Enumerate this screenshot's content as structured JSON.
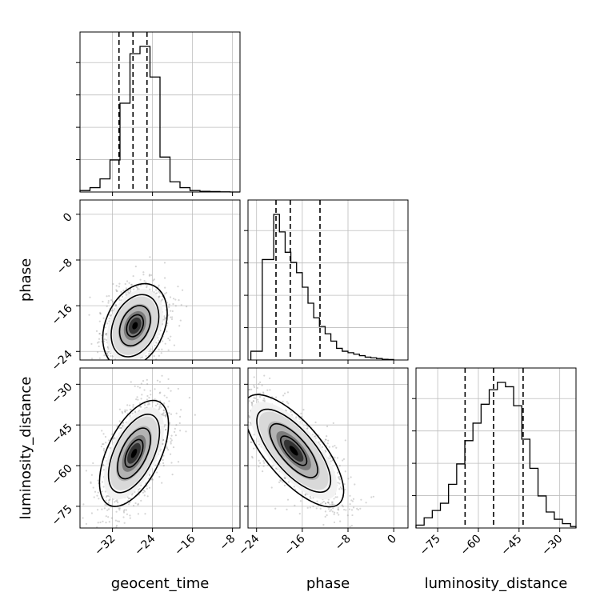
{
  "chart_data": {
    "type": "corner",
    "parameters": [
      "geocent_time",
      "phase",
      "luminosity_distance"
    ],
    "axis_labels": {
      "x": [
        "geocent_time",
        "phase",
        "luminosity_distance"
      ],
      "y": [
        "phase",
        "luminosity_distance"
      ]
    },
    "ranges": {
      "geocent_time": [
        -38.5,
        -6.5
      ],
      "phase": [
        -25.5,
        2.5
      ],
      "luminosity_distance": [
        -83,
        -24
      ]
    },
    "ticks": {
      "geocent_time": [
        -32,
        -24,
        -16,
        -8
      ],
      "phase": [
        -24,
        -16,
        -8,
        0
      ],
      "luminosity_distance": [
        -75,
        -60,
        -45,
        -30
      ]
    },
    "tick_labels": {
      "geocent_time": [
        "−32",
        "−24",
        "−16",
        "−8"
      ],
      "phase": [
        "−24",
        "−16",
        "−8",
        "0"
      ],
      "luminosity_distance": [
        "−75",
        "−60",
        "−45",
        "−30"
      ]
    },
    "quantiles": {
      "geocent_time": [
        -30.7,
        -27.9,
        -25.1
      ],
      "phase": [
        -20.6,
        -18.1,
        -12.9
      ],
      "luminosity_distance": [
        -64.9,
        -54.4,
        -43.5
      ]
    },
    "histograms": {
      "geocent_time": {
        "edges": [
          -38.5,
          -36.5,
          -34.5,
          -32.5,
          -30.5,
          -28.5,
          -26.5,
          -24.5,
          -22.5,
          -20.5,
          -18.5,
          -16.5,
          -14.5,
          -12.5,
          -10.5,
          -8.5,
          -6.5
        ],
        "counts": [
          0.01,
          0.03,
          0.09,
          0.22,
          0.61,
          0.95,
          1.0,
          0.79,
          0.24,
          0.07,
          0.03,
          0.01,
          0.005,
          0.003,
          0.001,
          0
        ]
      },
      "phase": {
        "edges": [
          -25,
          -23,
          -21,
          -20,
          -19,
          -18,
          -17,
          -16,
          -15,
          -14,
          -13,
          -12,
          -11,
          -10,
          -9,
          -8,
          -7,
          -6,
          -5,
          -4,
          -3,
          -2,
          -1,
          0
        ],
        "counts": [
          0.06,
          0.69,
          1.0,
          0.88,
          0.74,
          0.67,
          0.6,
          0.5,
          0.39,
          0.29,
          0.23,
          0.18,
          0.13,
          0.08,
          0.06,
          0.05,
          0.04,
          0.03,
          0.02,
          0.015,
          0.01,
          0.005,
          0.003
        ]
      },
      "luminosity_distance": {
        "edges": [
          -83,
          -80,
          -77,
          -74,
          -71,
          -68,
          -65,
          -62,
          -59,
          -56,
          -53,
          -50,
          -47,
          -44,
          -41,
          -38,
          -35,
          -32,
          -29,
          -26,
          -24
        ],
        "counts": [
          0.02,
          0.07,
          0.12,
          0.17,
          0.3,
          0.44,
          0.6,
          0.72,
          0.85,
          0.95,
          1.0,
          0.97,
          0.84,
          0.61,
          0.41,
          0.22,
          0.11,
          0.06,
          0.03,
          0.01
        ]
      }
    },
    "density_2d": [
      {
        "x": "geocent_time",
        "y": "phase",
        "center": [
          -27.5,
          -19.5
        ],
        "sd": [
          2.8,
          3.2
        ],
        "corr": 0.3
      },
      {
        "x": "geocent_time",
        "y": "luminosity_distance",
        "center": [
          -27.7,
          -55.5
        ],
        "sd": [
          3.0,
          8.5
        ],
        "corr": 0.55
      },
      {
        "x": "phase",
        "y": "luminosity_distance",
        "center": [
          -17.5,
          -54.5
        ],
        "sd": [
          3.8,
          9.0
        ],
        "corr": -0.72
      }
    ],
    "grid": true
  }
}
